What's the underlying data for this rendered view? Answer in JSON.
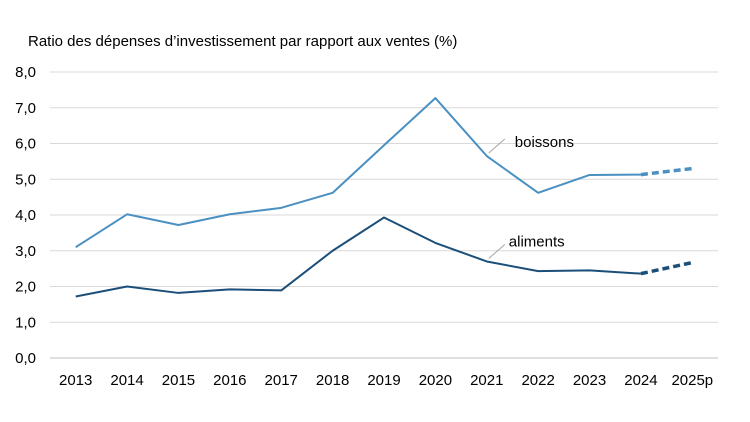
{
  "chart_data": {
    "type": "line",
    "title": "",
    "ylabel": "Ratio des dépenses d’investissement par rapport aux ventes (%)",
    "xlabel": "",
    "ylim": [
      0,
      8
    ],
    "yticks": [
      "0,0",
      "1,0",
      "2,0",
      "3,0",
      "4,0",
      "5,0",
      "6,0",
      "7,0",
      "8,0"
    ],
    "categories": [
      "2013",
      "2014",
      "2015",
      "2016",
      "2017",
      "2018",
      "2019",
      "2020",
      "2021",
      "2022",
      "2023",
      "2024",
      "2025p"
    ],
    "grid": true,
    "series": [
      {
        "name": "boissons",
        "color": "#4a90c2",
        "values": [
          3.1,
          4.02,
          3.72,
          4.02,
          4.2,
          4.62,
          5.95,
          7.27,
          5.65,
          4.62,
          5.12,
          5.13,
          5.3
        ],
        "projected_from_index": 11
      },
      {
        "name": "aliments",
        "color": "#1b4f7a",
        "values": [
          1.72,
          2.0,
          1.82,
          1.92,
          1.89,
          3.0,
          3.93,
          3.22,
          2.7,
          2.43,
          2.45,
          2.36,
          2.67
        ],
        "projected_from_index": 11
      }
    ]
  }
}
